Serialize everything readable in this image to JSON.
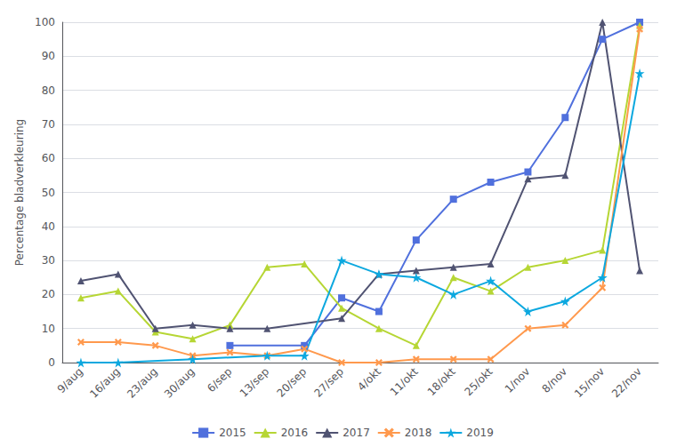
{
  "chart_data": {
    "type": "line",
    "ylabel": "Percentage bladverkleuring",
    "categories": [
      "9/aug",
      "16/aug",
      "23/aug",
      "30/aug",
      "6/sep",
      "13/sep",
      "20/sep",
      "27/sep",
      "4/okt",
      "11/okt",
      "18/okt",
      "25/okt",
      "1/nov",
      "8/nov",
      "15/nov",
      "22/nov"
    ],
    "series": [
      {
        "name": "2015",
        "marker": "square",
        "values": [
          null,
          null,
          null,
          null,
          5,
          null,
          5,
          19,
          15,
          36,
          48,
          53,
          56,
          72,
          95,
          100
        ]
      },
      {
        "name": "2016",
        "marker": "triangle",
        "values": [
          19,
          21,
          9,
          7,
          11,
          28,
          29,
          16,
          10,
          5,
          25,
          21,
          28,
          30,
          33,
          99
        ]
      },
      {
        "name": "2017",
        "marker": "triangle",
        "values": [
          24,
          26,
          10,
          11,
          10,
          10,
          null,
          13,
          26,
          27,
          28,
          29,
          54,
          55,
          100,
          27
        ]
      },
      {
        "name": "2018",
        "marker": "x",
        "values": [
          6,
          6,
          5,
          2,
          3,
          2,
          4,
          0,
          0,
          1,
          1,
          1,
          10,
          11,
          22,
          98
        ]
      },
      {
        "name": "2019",
        "marker": "star",
        "values": [
          0,
          0,
          null,
          1,
          null,
          2,
          2,
          30,
          26,
          25,
          20,
          24,
          15,
          18,
          25,
          85
        ]
      }
    ],
    "ylim": [
      0,
      100
    ],
    "yticks": [
      0,
      10,
      20,
      30,
      40,
      50,
      60,
      70,
      80,
      90,
      100
    ],
    "grid": true,
    "legend": "bottom"
  }
}
